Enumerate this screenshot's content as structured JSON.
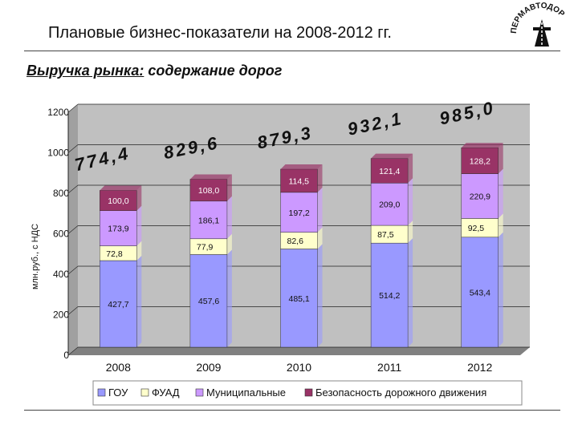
{
  "header": {
    "title": "Плановые бизнес-показатели на 2008-2012 гг.",
    "subtitle_underlined": "Выручка рынка:",
    "subtitle_rest": " содержание дорог",
    "logo_text": "ПЕРМАВТОДОР"
  },
  "colors": {
    "gou": "#9999ff",
    "fuad": "#ffffcc",
    "municipal": "#cc99ff",
    "safety": "#993366",
    "plot_bg": "#c0c0c0"
  },
  "chart_data": {
    "type": "bar",
    "stacked": true,
    "categories": [
      "2008",
      "2009",
      "2010",
      "2011",
      "2012"
    ],
    "ylabel": "млн.руб., с НДС",
    "ylim": [
      0,
      1200
    ],
    "yticks": [
      "0",
      "200",
      "400",
      "600",
      "800",
      "1000",
      "1200"
    ],
    "grid": true,
    "legend_position": "bottom",
    "series": [
      {
        "name": "ГОУ",
        "values": [
          427.7,
          457.6,
          485.1,
          514.2,
          543.4
        ],
        "labels": [
          "427,7",
          "457,6",
          "485,1",
          "514,2",
          "543,4"
        ]
      },
      {
        "name": "ФУАД",
        "values": [
          72.8,
          77.9,
          82.6,
          87.5,
          92.5
        ],
        "labels": [
          "72,8",
          "77,9",
          "82,6",
          "87,5",
          "92,5"
        ]
      },
      {
        "name": "Муниципальные",
        "values": [
          173.9,
          186.1,
          197.2,
          209.0,
          220.9
        ],
        "labels": [
          "173,9",
          "186,1",
          "197,2",
          "209,0",
          "220,9"
        ]
      },
      {
        "name": "Безопасность дорожного движения",
        "values": [
          100.0,
          108.0,
          114.5,
          121.4,
          128.2
        ],
        "labels": [
          "100,0",
          "108,0",
          "114,5",
          "121,4",
          "128,2"
        ]
      }
    ],
    "totals": [
      "774,4",
      "829,6",
      "879,3",
      "932,1",
      "985,0"
    ]
  }
}
